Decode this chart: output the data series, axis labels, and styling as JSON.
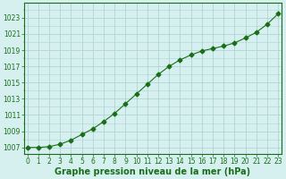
{
  "x": [
    0,
    1,
    2,
    3,
    4,
    5,
    6,
    7,
    8,
    9,
    10,
    11,
    12,
    13,
    14,
    15,
    16,
    17,
    18,
    19,
    20,
    21,
    22,
    23
  ],
  "y": [
    1007.0,
    1007.0,
    1007.1,
    1007.4,
    1007.9,
    1008.6,
    1009.3,
    1010.2,
    1011.2,
    1012.4,
    1013.6,
    1014.8,
    1016.0,
    1017.0,
    1017.8,
    1018.4,
    1018.9,
    1019.2,
    1019.5,
    1019.9,
    1020.5,
    1021.2,
    1022.2,
    1023.5
  ],
  "line_color": "#1a6e1a",
  "marker": "D",
  "marker_size": 2.5,
  "bg_color": "#d6f0f0",
  "grid_color": "#b0d4d4",
  "xlabel": "Graphe pression niveau de la mer (hPa)",
  "xlabel_fontsize": 7,
  "xlabel_color": "#1a6e1a",
  "ylabel_ticks": [
    1007,
    1009,
    1011,
    1013,
    1015,
    1017,
    1019,
    1021,
    1023
  ],
  "xlim": [
    -0.3,
    23.3
  ],
  "ylim": [
    1006.2,
    1024.8
  ],
  "xtick_labels": [
    "0",
    "1",
    "2",
    "3",
    "4",
    "5",
    "6",
    "7",
    "8",
    "9",
    "10",
    "11",
    "12",
    "13",
    "14",
    "15",
    "16",
    "17",
    "18",
    "19",
    "20",
    "21",
    "22",
    "23"
  ],
  "tick_color": "#1a6e1a",
  "tick_fontsize": 5.5,
  "spine_color": "#1a6e1a",
  "linewidth": 0.8
}
